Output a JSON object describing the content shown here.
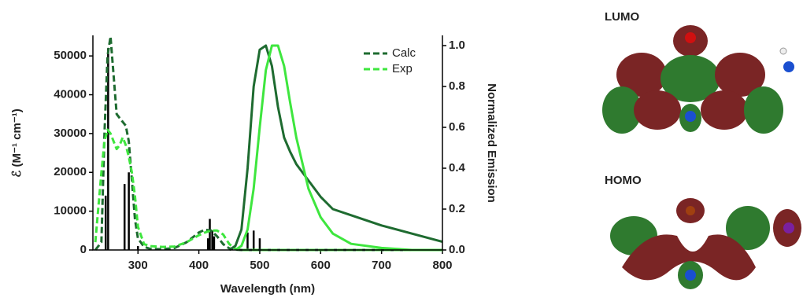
{
  "chart_data": {
    "type": "line",
    "xlabel": "Wavelength (nm)",
    "ylabel": "ℰ (M⁻¹ cm⁻¹)",
    "y2label": "Normalized Emission",
    "xlim": [
      226,
      800
    ],
    "xticks": [
      300,
      400,
      500,
      600,
      700,
      800
    ],
    "ylim": [
      0,
      55300
    ],
    "yticks": [
      0,
      10000,
      20000,
      30000,
      40000,
      50000
    ],
    "y2lim": [
      0,
      1.05
    ],
    "y2ticks": [
      {
        "value": 0,
        "label": "0.0"
      },
      {
        "value": 0.2,
        "label": "0.2"
      },
      {
        "value": 0.4,
        "label": "0.4"
      },
      {
        "value": 0.6,
        "label": "0.6"
      },
      {
        "value": 0.8,
        "label": "0.8"
      },
      {
        "value": 1,
        "label": "1.0"
      }
    ],
    "legend": "upper right",
    "x": [
      230,
      240,
      245,
      250,
      255,
      260,
      265,
      270,
      275,
      280,
      285,
      290,
      295,
      300,
      310,
      320,
      340,
      360,
      380,
      400,
      410,
      420,
      430,
      440,
      450,
      460,
      470,
      480,
      490,
      500,
      510,
      520,
      530,
      540,
      550,
      560,
      580,
      600,
      620,
      650,
      700,
      750,
      800
    ],
    "series": [
      {
        "name": "Calc",
        "color": "#1e6b30",
        "style": "dashed",
        "values": [
          0,
          2000,
          30000,
          50000,
          55000,
          45000,
          35000,
          34000,
          33000,
          32000,
          28000,
          18000,
          8000,
          3000,
          800,
          300,
          200,
          500,
          2000,
          4500,
          5200,
          5000,
          3500,
          1500,
          400,
          100,
          0,
          0,
          0,
          0,
          0,
          0,
          0,
          0,
          0,
          0,
          0,
          0,
          0,
          0,
          0,
          0,
          0
        ]
      },
      {
        "name": "Exp",
        "color": "#3ee63e",
        "style": "dashed",
        "values": [
          2000,
          20000,
          28000,
          31000,
          30000,
          28000,
          26000,
          27000,
          29000,
          27000,
          24000,
          20000,
          14000,
          6000,
          1500,
          1000,
          800,
          900,
          2000,
          3800,
          4500,
          5000,
          5000,
          4000,
          1500,
          300,
          0,
          0,
          0,
          0,
          0,
          0,
          0,
          0,
          0,
          0,
          0,
          0,
          0,
          0,
          0,
          0,
          0
        ]
      },
      {
        "color": "#1e6b30",
        "style": "solid",
        "axis": "y2",
        "values": [
          null,
          null,
          null,
          null,
          null,
          null,
          null,
          null,
          null,
          null,
          null,
          null,
          null,
          null,
          null,
          null,
          null,
          null,
          null,
          null,
          null,
          null,
          null,
          null,
          0,
          0.02,
          0.1,
          0.4,
          0.8,
          0.98,
          1.0,
          0.9,
          0.7,
          0.55,
          0.48,
          0.42,
          0.34,
          0.26,
          0.2,
          0.17,
          0.12,
          0.08,
          0.04
        ]
      },
      {
        "color": "#3ee63e",
        "style": "solid",
        "axis": "y2",
        "values": [
          null,
          null,
          null,
          null,
          null,
          null,
          null,
          null,
          null,
          null,
          null,
          null,
          null,
          null,
          null,
          null,
          null,
          null,
          null,
          null,
          null,
          null,
          null,
          null,
          null,
          0,
          0.02,
          0.1,
          0.3,
          0.6,
          0.88,
          1.0,
          1.0,
          0.9,
          0.72,
          0.55,
          0.3,
          0.16,
          0.08,
          0.03,
          0.01,
          0,
          0
        ]
      }
    ],
    "sticks": {
      "color": "#000000",
      "x": [
        247,
        251,
        278,
        285,
        300,
        415,
        418,
        422,
        425,
        480,
        490,
        500
      ],
      "values": [
        14000,
        52000,
        17000,
        20000,
        1000,
        3000,
        8000,
        5000,
        3500,
        4500,
        5000,
        3000
      ]
    }
  },
  "orbitals": [
    "LUMO",
    "HOMO"
  ]
}
